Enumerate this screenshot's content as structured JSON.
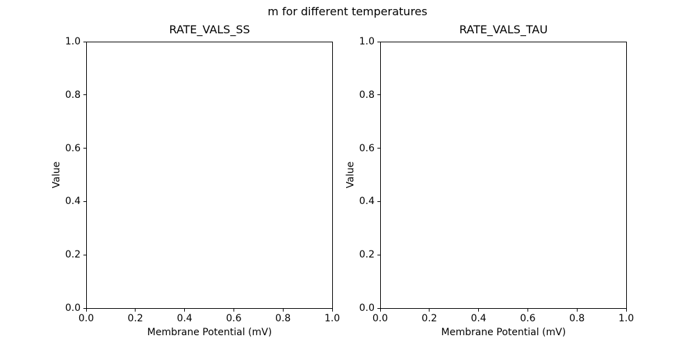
{
  "figure": {
    "suptitle": "m for different temperatures",
    "background_color": "#ffffff",
    "text_color": "#000000",
    "spine_color": "#000000"
  },
  "chart_data": [
    {
      "type": "line",
      "title": "RATE_VALS_SS",
      "xlabel": "Membrane Potential (mV)",
      "ylabel": "Value",
      "xlim": [
        0.0,
        1.0
      ],
      "ylim": [
        0.0,
        1.0
      ],
      "xtick_labels": [
        "0.0",
        "0.2",
        "0.4",
        "0.6",
        "0.8",
        "1.0"
      ],
      "ytick_labels": [
        "0.0",
        "0.2",
        "0.4",
        "0.6",
        "0.8",
        "1.0"
      ],
      "grid": false,
      "legend": false,
      "series": []
    },
    {
      "type": "line",
      "title": "RATE_VALS_TAU",
      "xlabel": "Membrane Potential (mV)",
      "ylabel": "Value",
      "xlim": [
        0.0,
        1.0
      ],
      "ylim": [
        0.0,
        1.0
      ],
      "xtick_labels": [
        "0.0",
        "0.2",
        "0.4",
        "0.6",
        "0.8",
        "1.0"
      ],
      "ytick_labels": [
        "0.0",
        "0.2",
        "0.4",
        "0.6",
        "0.8",
        "1.0"
      ],
      "grid": false,
      "legend": false,
      "series": []
    }
  ]
}
